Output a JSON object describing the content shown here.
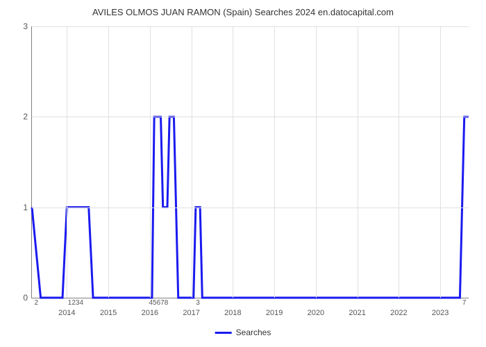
{
  "chart": {
    "type": "line",
    "title": "AVILES OLMOS JUAN RAMON (Spain) Searches 2024 en.datocapital.com",
    "title_fontsize": 13,
    "title_color": "#333333",
    "background_color": "#ffffff",
    "grid_color": "#e0e0e0",
    "axis_color": "#808080",
    "line_color": "#1a1af0",
    "line_width": 3,
    "y_axis": {
      "min": 0,
      "max": 3,
      "ticks": [
        0,
        1,
        2,
        3
      ],
      "label_fontsize": 12,
      "label_color": "#555555"
    },
    "x_axis": {
      "year_ticks": [
        "2014",
        "2015",
        "2016",
        "2017",
        "2018",
        "2019",
        "2020",
        "2021",
        "2022",
        "2023"
      ],
      "year_positions_pct": [
        8,
        17.5,
        27,
        36.5,
        46,
        55.5,
        65,
        74.5,
        84,
        93.5
      ],
      "data_labels": [
        {
          "text": "2",
          "pos_pct": 1
        },
        {
          "text": "1234",
          "pos_pct": 10
        },
        {
          "text": "45678",
          "pos_pct": 29
        },
        {
          "text": "3",
          "pos_pct": 38
        },
        {
          "text": "7",
          "pos_pct": 99
        }
      ],
      "label_fontsize": 11,
      "label_color": "#555555"
    },
    "series": {
      "name": "Searches",
      "points": [
        {
          "x": 0.0,
          "y": 1.0
        },
        {
          "x": 2.0,
          "y": 0.0
        },
        {
          "x": 7.0,
          "y": 0.0
        },
        {
          "x": 8.0,
          "y": 1.0
        },
        {
          "x": 13.0,
          "y": 1.0
        },
        {
          "x": 14.0,
          "y": 0.0
        },
        {
          "x": 27.5,
          "y": 0.0
        },
        {
          "x": 28.0,
          "y": 2.0
        },
        {
          "x": 29.5,
          "y": 2.0
        },
        {
          "x": 30.0,
          "y": 1.0
        },
        {
          "x": 31.0,
          "y": 1.0
        },
        {
          "x": 31.5,
          "y": 2.0
        },
        {
          "x": 32.5,
          "y": 2.0
        },
        {
          "x": 33.5,
          "y": 0.0
        },
        {
          "x": 37.0,
          "y": 0.0
        },
        {
          "x": 37.5,
          "y": 1.0
        },
        {
          "x": 38.5,
          "y": 1.0
        },
        {
          "x": 39.0,
          "y": 0.0
        },
        {
          "x": 98.0,
          "y": 0.0
        },
        {
          "x": 99.0,
          "y": 2.0
        },
        {
          "x": 100.0,
          "y": 2.0
        }
      ]
    },
    "legend": {
      "label": "Searches",
      "color": "#1a1af0"
    }
  }
}
